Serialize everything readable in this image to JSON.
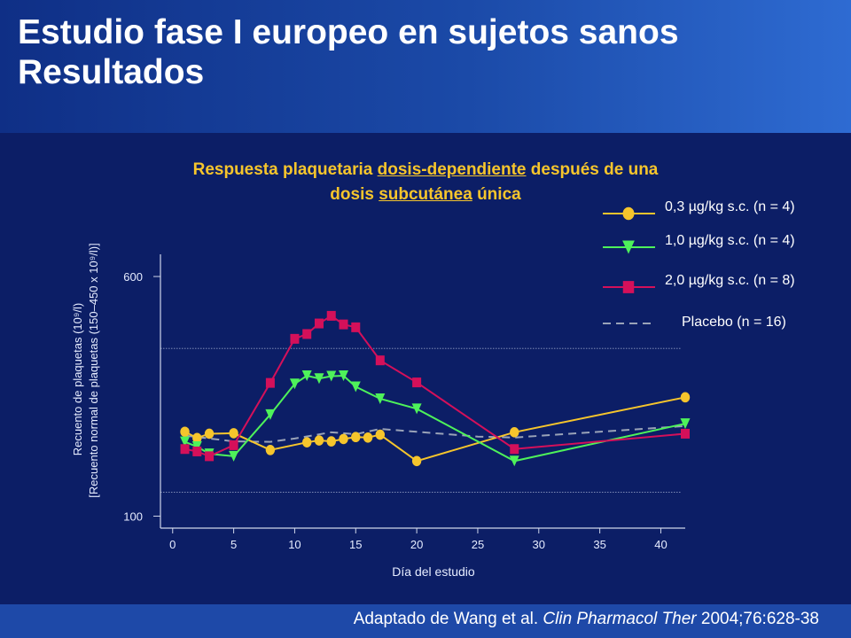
{
  "slide": {
    "title_line1": "Estudio fase I europeo en sujetos sanos",
    "title_line2": "Resultados",
    "footer_prefix": "Adaptado de Wang et al. ",
    "footer_journal": "Clin Pharmacol Ther",
    "footer_suffix": " 2004;76:628-38"
  },
  "chart_data": {
    "type": "line",
    "title_parts": {
      "p1": "Respuesta plaquetaria ",
      "u1": "dosis-dependiente",
      "p2": " después de una",
      "p3": "dosis ",
      "u2": "subcutánea",
      "p4": " única"
    },
    "xlabel": "Día del estudio",
    "ylabel_line1": "Recuento de plaquetas  (10⁹/l)",
    "ylabel_line2": "[Recuento normal de plaquetas (150–450 x 10⁹/l)]",
    "xlim": [
      -1,
      42
    ],
    "ylim": [
      75,
      650
    ],
    "x_ticks": [
      0,
      5,
      10,
      15,
      20,
      25,
      30,
      35,
      40
    ],
    "y_ticks": [
      100,
      600
    ],
    "reference_lines": [
      150,
      450
    ],
    "grid": false,
    "legend_position": "top-right",
    "series": [
      {
        "name": "0,3 µg/kg s.c. (n = 4)",
        "color": "#f6c52c",
        "marker": "ellipse",
        "dash": false,
        "points": [
          [
            1,
            276
          ],
          [
            2,
            263
          ],
          [
            3,
            272
          ],
          [
            5,
            273
          ],
          [
            8,
            238
          ],
          [
            11,
            254
          ],
          [
            12,
            258
          ],
          [
            13,
            256
          ],
          [
            14,
            261
          ],
          [
            15,
            265
          ],
          [
            16,
            264
          ],
          [
            17,
            270
          ],
          [
            20,
            215
          ],
          [
            28,
            275
          ],
          [
            42,
            348
          ]
        ]
      },
      {
        "name": "1,0 µg/kg s.c. (n = 4)",
        "color": "#4ef25a",
        "marker": "triangle-down",
        "dash": false,
        "points": [
          [
            1,
            255
          ],
          [
            2,
            245
          ],
          [
            3,
            230
          ],
          [
            5,
            225
          ],
          [
            8,
            312
          ],
          [
            10,
            376
          ],
          [
            11,
            393
          ],
          [
            12,
            387
          ],
          [
            13,
            392
          ],
          [
            14,
            393
          ],
          [
            15,
            370
          ],
          [
            17,
            345
          ],
          [
            20,
            324
          ],
          [
            28,
            215
          ],
          [
            42,
            293
          ]
        ]
      },
      {
        "name": "2,0 µg/kg s.c. (n = 8)",
        "color": "#d4105a",
        "marker": "square",
        "dash": false,
        "points": [
          [
            1,
            240
          ],
          [
            2,
            235
          ],
          [
            3,
            225
          ],
          [
            5,
            248
          ],
          [
            8,
            378
          ],
          [
            10,
            470
          ],
          [
            11,
            480
          ],
          [
            12,
            502
          ],
          [
            13,
            518
          ],
          [
            14,
            500
          ],
          [
            15,
            494
          ],
          [
            17,
            425
          ],
          [
            20,
            379
          ],
          [
            28,
            240
          ],
          [
            42,
            272
          ]
        ]
      },
      {
        "name": "Placebo (n = 16)",
        "color": "#9aa3b8",
        "marker": "none",
        "dash": true,
        "points": [
          [
            1,
            268
          ],
          [
            3,
            262
          ],
          [
            5,
            256
          ],
          [
            8,
            255
          ],
          [
            10,
            262
          ],
          [
            13,
            275
          ],
          [
            15,
            271
          ],
          [
            17,
            282
          ],
          [
            20,
            276
          ],
          [
            25,
            266
          ],
          [
            28,
            264
          ],
          [
            32,
            271
          ],
          [
            42,
            288
          ]
        ]
      }
    ]
  }
}
